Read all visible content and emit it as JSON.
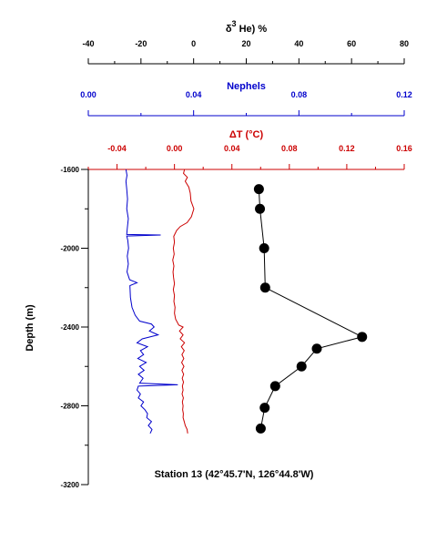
{
  "chart_data": {
    "type": "line",
    "caption": "Station 13 (42°45.7'N, 126°44.8'W)",
    "y_axis": {
      "label": "Depth (m)",
      "range": [
        -3200,
        -1600
      ],
      "ticks": [
        -1600,
        -2000,
        -2400,
        -2800,
        -3200
      ],
      "tick_labels": [
        "-1600",
        "-2000",
        "-2400",
        "-2800",
        "-3200"
      ],
      "inverted": true
    },
    "x_axes": [
      {
        "id": "helium",
        "label_prefix": "δ",
        "label_sup": "3",
        "label_suffix": " He) %",
        "range": [
          -40,
          80
        ],
        "ticks": [
          -40,
          -20,
          0,
          20,
          40,
          60,
          80
        ],
        "tick_labels": [
          "-40",
          "-20",
          "0",
          "20",
          "40",
          "60",
          "80"
        ],
        "color": "#000000"
      },
      {
        "id": "nephels",
        "label": "Nephels",
        "range": [
          0.0,
          0.12
        ],
        "ticks": [
          0.0,
          0.04,
          0.08,
          0.12
        ],
        "tick_labels": [
          "0.00",
          "0.04",
          "0.08",
          "0.12"
        ],
        "color": "#0000cc"
      },
      {
        "id": "deltaT",
        "label": "ΔT (°C)",
        "range": [
          -0.06,
          0.16
        ],
        "ticks": [
          -0.04,
          0.0,
          0.04,
          0.08,
          0.12,
          0.16
        ],
        "tick_labels": [
          "-0.04",
          "0.00",
          "0.04",
          "0.08",
          "0.12",
          "0.16"
        ],
        "color": "#cc0000"
      }
    ],
    "series": [
      {
        "axis": "helium",
        "style": "line-markers",
        "color": "#000000",
        "points": [
          [
            24.8,
            -1700
          ],
          [
            25.2,
            -1800
          ],
          [
            26.8,
            -2000
          ],
          [
            27.2,
            -2200
          ],
          [
            64.0,
            -2450
          ],
          [
            46.8,
            -2510
          ],
          [
            41.0,
            -2600
          ],
          [
            31.0,
            -2700
          ],
          [
            27.0,
            -2810
          ],
          [
            25.5,
            -2915
          ]
        ]
      },
      {
        "axis": "nephels",
        "style": "line",
        "color": "#0000cc",
        "points": [
          [
            0.0143,
            -1600
          ],
          [
            0.0147,
            -1630
          ],
          [
            0.0143,
            -1660
          ],
          [
            0.0146,
            -1700
          ],
          [
            0.0149,
            -1750
          ],
          [
            0.0146,
            -1800
          ],
          [
            0.0152,
            -1850
          ],
          [
            0.0148,
            -1900
          ],
          [
            0.0146,
            -1930
          ],
          [
            0.0275,
            -1933
          ],
          [
            0.0146,
            -1938
          ],
          [
            0.015,
            -1960
          ],
          [
            0.0153,
            -2000
          ],
          [
            0.0148,
            -2040
          ],
          [
            0.0152,
            -2080
          ],
          [
            0.0147,
            -2120
          ],
          [
            0.0157,
            -2160
          ],
          [
            0.0185,
            -2175
          ],
          [
            0.0158,
            -2190
          ],
          [
            0.016,
            -2250
          ],
          [
            0.0166,
            -2300
          ],
          [
            0.0178,
            -2340
          ],
          [
            0.0195,
            -2370
          ],
          [
            0.024,
            -2385
          ],
          [
            0.025,
            -2400
          ],
          [
            0.0232,
            -2420
          ],
          [
            0.0265,
            -2440
          ],
          [
            0.0205,
            -2460
          ],
          [
            0.0185,
            -2480
          ],
          [
            0.0225,
            -2500
          ],
          [
            0.0198,
            -2520
          ],
          [
            0.021,
            -2540
          ],
          [
            0.0188,
            -2560
          ],
          [
            0.022,
            -2580
          ],
          [
            0.0195,
            -2600
          ],
          [
            0.0212,
            -2620
          ],
          [
            0.019,
            -2640
          ],
          [
            0.0208,
            -2660
          ],
          [
            0.0195,
            -2685
          ],
          [
            0.034,
            -2693
          ],
          [
            0.019,
            -2700
          ],
          [
            0.0185,
            -2720
          ],
          [
            0.0198,
            -2740
          ],
          [
            0.019,
            -2760
          ],
          [
            0.021,
            -2780
          ],
          [
            0.02,
            -2800
          ],
          [
            0.0215,
            -2820
          ],
          [
            0.0225,
            -2840
          ],
          [
            0.0222,
            -2860
          ],
          [
            0.024,
            -2880
          ],
          [
            0.0228,
            -2900
          ],
          [
            0.0242,
            -2920
          ],
          [
            0.0235,
            -2940
          ]
        ]
      },
      {
        "axis": "deltaT",
        "style": "line",
        "color": "#cc0000",
        "points": [
          [
            0.007,
            -1600
          ],
          [
            0.0063,
            -1620
          ],
          [
            0.009,
            -1640
          ],
          [
            0.0075,
            -1660
          ],
          [
            0.01,
            -1690
          ],
          [
            0.011,
            -1720
          ],
          [
            0.0115,
            -1760
          ],
          [
            0.0135,
            -1800
          ],
          [
            0.0118,
            -1840
          ],
          [
            0.0088,
            -1870
          ],
          [
            0.004,
            -1890
          ],
          [
            0.0015,
            -1910
          ],
          [
            -0.0005,
            -1940
          ],
          [
            0.0,
            -1970
          ],
          [
            -0.0008,
            -2000
          ],
          [
            -0.0002,
            -2030
          ],
          [
            -0.0012,
            -2060
          ],
          [
            -0.0004,
            -2090
          ],
          [
            -0.001,
            -2120
          ],
          [
            -0.0006,
            -2150
          ],
          [
            0.0,
            -2180
          ],
          [
            -0.0008,
            -2210
          ],
          [
            0.0,
            -2240
          ],
          [
            -0.0004,
            -2270
          ],
          [
            0.0004,
            -2300
          ],
          [
            0.0,
            -2330
          ],
          [
            0.0008,
            -2360
          ],
          [
            0.003,
            -2390
          ],
          [
            0.006,
            -2400
          ],
          [
            0.0035,
            -2420
          ],
          [
            0.006,
            -2440
          ],
          [
            0.004,
            -2460
          ],
          [
            0.007,
            -2480
          ],
          [
            0.0048,
            -2500
          ],
          [
            0.0068,
            -2520
          ],
          [
            0.0052,
            -2540
          ],
          [
            0.0065,
            -2560
          ],
          [
            0.005,
            -2580
          ],
          [
            0.0066,
            -2600
          ],
          [
            0.0052,
            -2620
          ],
          [
            0.0064,
            -2640
          ],
          [
            0.0054,
            -2660
          ],
          [
            0.0063,
            -2680
          ],
          [
            0.0055,
            -2700
          ],
          [
            0.006,
            -2720
          ],
          [
            0.0053,
            -2740
          ],
          [
            0.0062,
            -2760
          ],
          [
            0.0055,
            -2780
          ],
          [
            0.006,
            -2800
          ],
          [
            0.0057,
            -2820
          ],
          [
            0.0062,
            -2840
          ],
          [
            0.006,
            -2860
          ],
          [
            0.0068,
            -2880
          ],
          [
            0.0075,
            -2900
          ],
          [
            0.0088,
            -2920
          ],
          [
            0.0092,
            -2940
          ]
        ]
      }
    ]
  }
}
